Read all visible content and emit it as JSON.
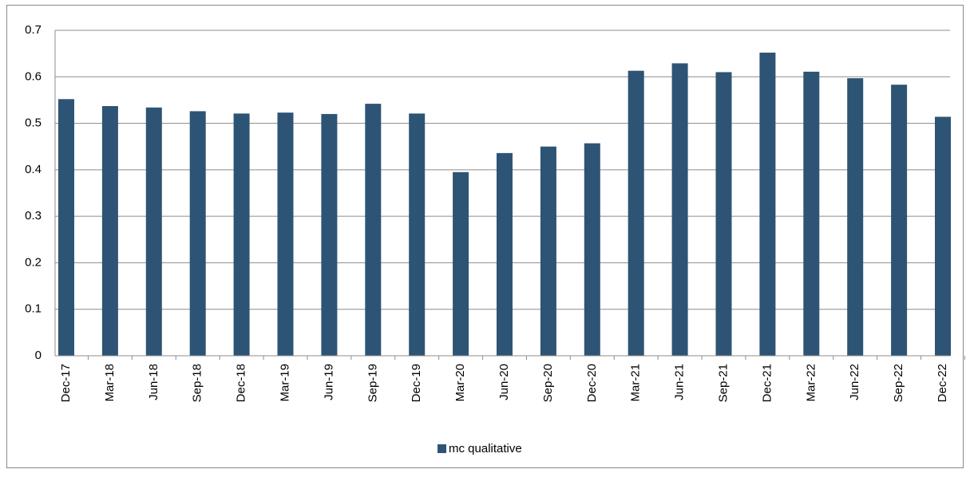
{
  "chart_data": {
    "type": "bar",
    "categories": [
      "Dec-17",
      "Mar-18",
      "Jun-18",
      "Sep-18",
      "Dec-18",
      "Mar-19",
      "Jun-19",
      "Sep-19",
      "Dec-19",
      "Mar-20",
      "Jun-20",
      "Sep-20",
      "Dec-20",
      "Mar-21",
      "Jun-21",
      "Sep-21",
      "Dec-21",
      "Mar-22",
      "Jun-22",
      "Sep-22",
      "Dec-22"
    ],
    "series": [
      {
        "name": "mc qualitative",
        "color": "#2e5475",
        "values": [
          0.552,
          0.537,
          0.534,
          0.526,
          0.521,
          0.523,
          0.52,
          0.542,
          0.521,
          0.395,
          0.436,
          0.45,
          0.457,
          0.613,
          0.629,
          0.61,
          0.652,
          0.611,
          0.597,
          0.583,
          0.514
        ]
      }
    ],
    "ylim": [
      0,
      0.7
    ],
    "yticks": [
      0,
      0.1,
      0.2,
      0.3,
      0.4,
      0.5,
      0.6,
      0.7
    ],
    "grid": true,
    "legend": "bottom"
  }
}
